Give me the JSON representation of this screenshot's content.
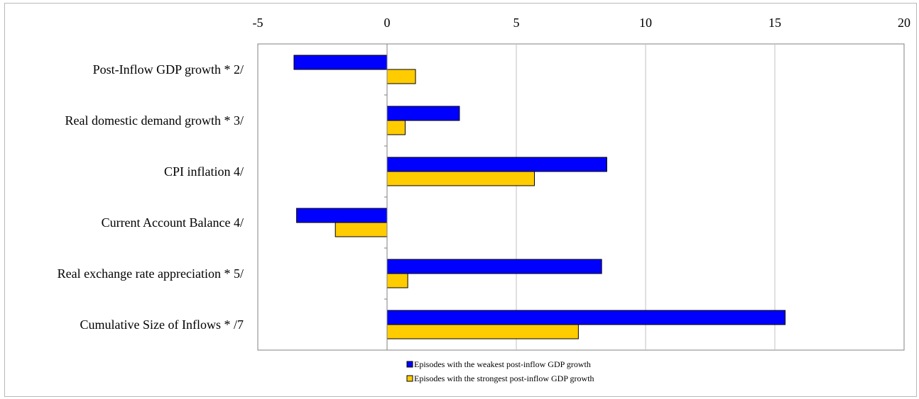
{
  "chart_data": {
    "type": "bar",
    "orientation": "horizontal",
    "categories": [
      "Post-Inflow GDP growth *  2/",
      "Real domestic demand growth * 3/",
      "CPI inflation  4/",
      "Current Account Balance 4/",
      "Real exchange rate appreciation *  5/",
      "Cumulative Size of Inflows * /7"
    ],
    "series": [
      {
        "name": "Episodes with the weakest post-inflow GDP growth",
        "color": "#0000ff",
        "values": [
          -3.6,
          2.8,
          8.5,
          -3.5,
          8.3,
          15.4
        ]
      },
      {
        "name": "Episodes with the strongest post-inflow GDP growth",
        "color": "#ffcc00",
        "values": [
          1.1,
          0.7,
          5.7,
          -2.0,
          0.8,
          7.4
        ]
      }
    ],
    "xlim": [
      -5,
      20
    ],
    "xticks": [
      -5,
      0,
      5,
      10,
      15,
      20
    ],
    "xtick_labels": [
      "-5",
      "0",
      "5",
      "10",
      "15",
      "20"
    ],
    "grid": "vertical",
    "axis_position": "top",
    "legend_placement": "bottom-center",
    "title": "",
    "xlabel": "",
    "ylabel": ""
  }
}
